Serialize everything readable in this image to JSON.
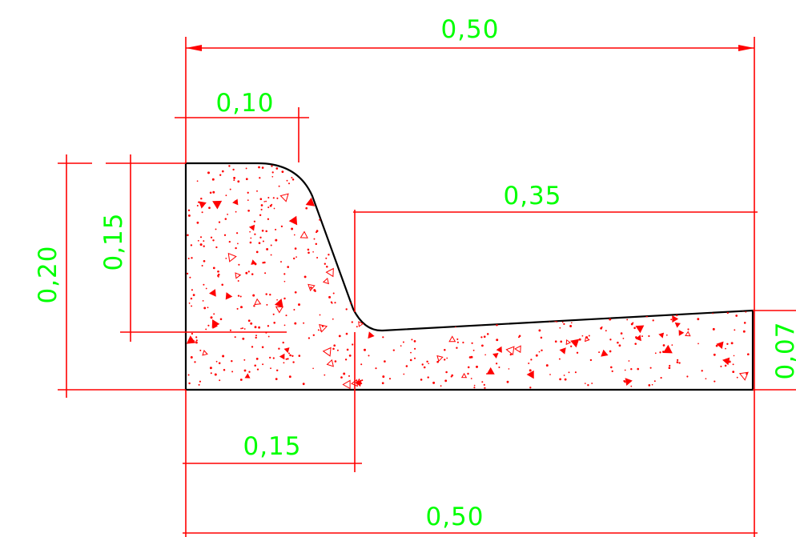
{
  "colors": {
    "dimension_lines": "#ff0000",
    "dimension_text": "#00ff00",
    "outline": "#000000",
    "hatch": "#ff0000",
    "background": "#ffffff"
  },
  "dimensions": {
    "top_total_width": "0,50",
    "top_left_width": "0,10",
    "top_right_width": "0,35",
    "left_total_height": "0,20",
    "left_inner_height": "0,15",
    "right_height": "0,07",
    "bottom_left_width": "0,15",
    "bottom_total_width": "0,50"
  }
}
